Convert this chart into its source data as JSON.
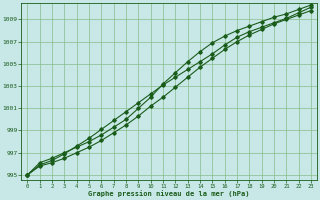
{
  "xlabel": "Graphe pression niveau de la mer (hPa)",
  "ylim": [
    994.5,
    1010.5
  ],
  "xlim": [
    -0.5,
    23.5
  ],
  "yticks": [
    995,
    997,
    999,
    1001,
    1003,
    1005,
    1007,
    1009
  ],
  "xticks": [
    0,
    1,
    2,
    3,
    4,
    5,
    6,
    7,
    8,
    9,
    10,
    11,
    12,
    13,
    14,
    15,
    16,
    17,
    18,
    19,
    20,
    21,
    22,
    23
  ],
  "bg_color": "#c8e8e8",
  "line_color": "#1a5c1a",
  "grid_color": "#88bb88",
  "series1": [
    995.0,
    995.8,
    996.1,
    996.5,
    997.0,
    997.5,
    998.1,
    998.8,
    999.5,
    1000.3,
    1001.2,
    1002.0,
    1002.9,
    1003.8,
    1004.7,
    1005.5,
    1006.3,
    1007.0,
    1007.6,
    1008.1,
    1008.6,
    1009.0,
    1009.4,
    1009.8
  ],
  "series2": [
    995.0,
    995.9,
    996.3,
    996.9,
    997.6,
    998.3,
    999.1,
    999.9,
    1000.7,
    1001.5,
    1002.3,
    1003.1,
    1003.8,
    1004.5,
    1005.2,
    1005.9,
    1006.7,
    1007.4,
    1007.9,
    1008.3,
    1008.7,
    1009.1,
    1009.6,
    1010.1
  ],
  "series3": [
    995.0,
    996.1,
    996.5,
    997.0,
    997.5,
    998.0,
    998.6,
    999.3,
    1000.0,
    1001.0,
    1002.0,
    1003.2,
    1004.2,
    1005.2,
    1006.1,
    1006.9,
    1007.5,
    1008.0,
    1008.4,
    1008.8,
    1009.2,
    1009.5,
    1009.9,
    1010.3
  ]
}
